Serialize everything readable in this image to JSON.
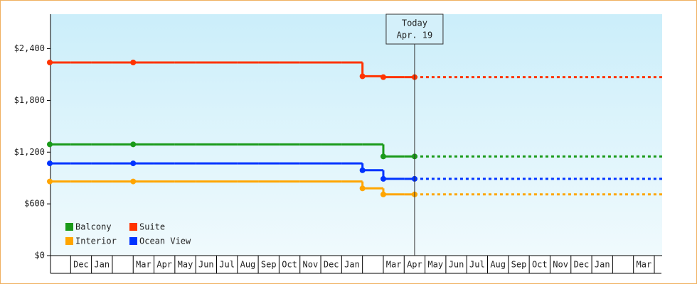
{
  "chart_data": {
    "type": "step",
    "categories": [
      null,
      "Dec",
      "Jan",
      null,
      "Mar",
      "Apr",
      "May",
      "Jun",
      "Jul",
      "Aug",
      "Sep",
      "Oct",
      "Nov",
      "Dec",
      "Jan",
      null,
      "Mar",
      "Apr",
      "May",
      "Jun",
      "Jul",
      "Aug",
      "Sep",
      "Oct",
      "Nov",
      "Dec",
      "Jan",
      null,
      "Mar"
    ],
    "series": [
      {
        "name": "Balcony",
        "color": "#1a9a1a",
        "values": [
          1290,
          1290,
          1290,
          1290,
          1290,
          1290,
          1290,
          1290,
          1290,
          1290,
          1290,
          1290,
          1290,
          1290,
          1290,
          1290,
          1150,
          1150,
          null,
          null,
          null,
          null,
          null,
          null,
          null,
          null,
          null,
          null,
          null
        ]
      },
      {
        "name": "Suite",
        "color": "#ff3300",
        "values": [
          2240,
          2240,
          2240,
          2240,
          2240,
          2240,
          2240,
          2240,
          2240,
          2240,
          2240,
          2240,
          2240,
          2240,
          2240,
          2080,
          2070,
          2070,
          null,
          null,
          null,
          null,
          null,
          null,
          null,
          null,
          null,
          null,
          null
        ]
      },
      {
        "name": "Interior",
        "color": "#ffa500",
        "values": [
          860,
          860,
          860,
          860,
          860,
          860,
          860,
          860,
          860,
          860,
          860,
          860,
          860,
          860,
          860,
          780,
          710,
          710,
          null,
          null,
          null,
          null,
          null,
          null,
          null,
          null,
          null,
          null,
          null
        ]
      },
      {
        "name": "Ocean View",
        "color": "#0033ff",
        "values": [
          1070,
          1070,
          1070,
          1070,
          1070,
          1070,
          1070,
          1070,
          1070,
          1070,
          1070,
          1070,
          1070,
          1070,
          1070,
          990,
          890,
          890,
          null,
          null,
          null,
          null,
          null,
          null,
          null,
          null,
          null,
          null,
          null
        ]
      }
    ],
    "ylim": [
      0,
      2800
    ],
    "yticks": [
      {
        "value": 0,
        "label": "$0"
      },
      {
        "value": 600,
        "label": "$600"
      },
      {
        "value": 1200,
        "label": "$1,200"
      },
      {
        "value": 1800,
        "label": "$1,800"
      },
      {
        "value": 2400,
        "label": "$2,400"
      }
    ],
    "legend": "lower-left",
    "annotation": {
      "lines": [
        "Today",
        "Apr. 19"
      ]
    }
  }
}
